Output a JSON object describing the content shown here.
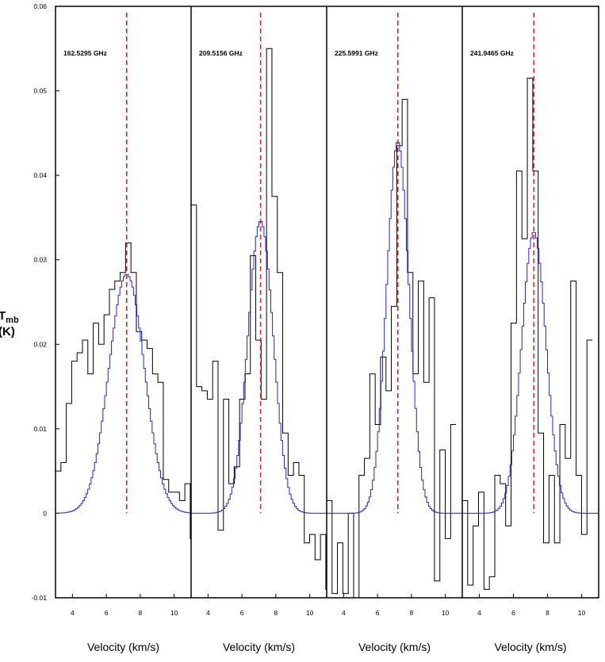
{
  "chart_data": {
    "type": "line",
    "ylabel": {
      "main": "T",
      "sub": "mb",
      "unit": "(K)"
    },
    "ylim": [
      -0.01,
      0.06
    ],
    "yticks": [
      "-0.01",
      "0",
      "0.01",
      "0.02",
      "0.03",
      "0.04",
      "0.05",
      "0.06"
    ],
    "xlim": [
      3.0,
      11.0
    ],
    "xticks": [
      "4",
      "6",
      "8",
      "10"
    ],
    "xlabel": "Velocity (km/s)",
    "colors": {
      "observed": "#000000",
      "model": "#2222dd",
      "marker": "#e02020"
    },
    "panels": [
      {
        "frequency": "162.5295 GHz",
        "marker_velocity": 7.2,
        "model": {
          "center": 7.2,
          "peak": 0.0283,
          "sigma": 1.05
        },
        "observed": {
          "start": 3.0,
          "width": 0.318,
          "values": [
            0.005,
            0.006,
            0.013,
            0.018,
            0.019,
            0.0205,
            0.0165,
            0.0225,
            0.02,
            0.0235,
            0.0265,
            0.0275,
            0.0285,
            0.032,
            0.0285,
            0.0215,
            0.0205,
            0.0195,
            0.0165,
            0.0155,
            0.004,
            0.0025,
            0.0025,
            0.0015,
            0.0035,
            -0.003,
            -0.007
          ]
        }
      },
      {
        "frequency": "209.5156 GHz",
        "marker_velocity": 7.1,
        "model": {
          "center": 7.1,
          "peak": 0.0346,
          "sigma": 0.75
        },
        "observed": {
          "start": 3.0,
          "width": 0.318,
          "values": [
            0.0365,
            0.015,
            0.0145,
            0.0135,
            0.018,
            -0.002,
            0.0135,
            0.0035,
            0.0055,
            0.0135,
            0.0165,
            0.0305,
            0.0205,
            0.0135,
            0.055,
            0.0375,
            0.0285,
            0.0095,
            0.0045,
            0.006,
            0.0045,
            -0.0035,
            -0.0025,
            -0.0055,
            -0.0025,
            -0.009
          ]
        }
      },
      {
        "frequency": "225.5991 GHz",
        "marker_velocity": 7.2,
        "model": {
          "center": 7.2,
          "peak": 0.044,
          "sigma": 0.66
        },
        "observed": {
          "start": 3.0,
          "width": 0.318,
          "values": [
            0.0015,
            -0.0095,
            -0.0035,
            -0.0095,
            0.0,
            -0.0105,
            0.0045,
            0.0065,
            0.0165,
            0.0105,
            0.0185,
            0.0145,
            0.0245,
            0.0435,
            0.049,
            0.0285,
            0.0165,
            0.0275,
            0.0155,
            0.0255,
            -0.008,
            0.0075,
            -0.003,
            0.0105
          ]
        }
      },
      {
        "frequency": "241.9465 GHz",
        "marker_velocity": 7.2,
        "model": {
          "center": 7.2,
          "peak": 0.0333,
          "sigma": 0.72
        },
        "observed": {
          "start": 3.0,
          "width": 0.318,
          "values": [
            0.0015,
            -0.0085,
            -0.0015,
            0.0025,
            -0.009,
            -0.0075,
            0.0045,
            0.0035,
            -0.0015,
            0.0225,
            0.0405,
            0.0325,
            0.0515,
            0.0405,
            0.0095,
            -0.0035,
            0.0045,
            -0.0035,
            0.0105,
            0.0065,
            0.0275,
            0.0045,
            -0.0025,
            0.0205
          ]
        }
      }
    ]
  }
}
